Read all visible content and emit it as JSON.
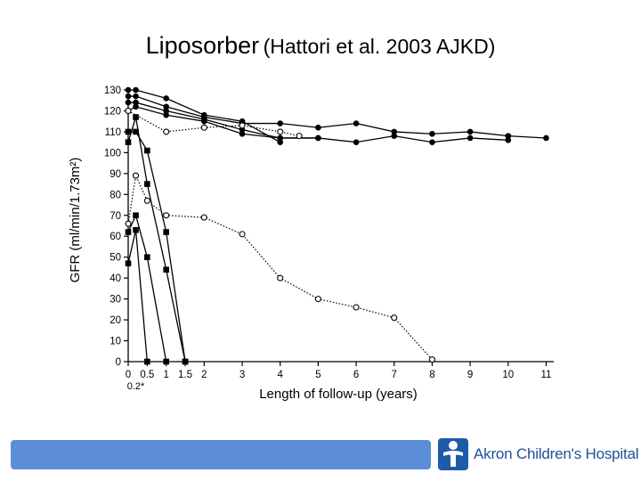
{
  "slide": {
    "title_main": "Liposorber",
    "title_cite": "(Hattori et al. 2003 AJKD)"
  },
  "footer": {
    "logo_text": "Akron Children's Hospital"
  },
  "chart_data": {
    "type": "line",
    "ylabel": "GFR (ml/min/1.73m²)",
    "xlabel": "Length of follow-up (years)",
    "xlim": [
      0,
      11.2
    ],
    "ylim": [
      0,
      130
    ],
    "x_ticks": [
      {
        "x": 0,
        "label": "0"
      },
      {
        "x": 0.5,
        "label": "0.5"
      },
      {
        "x": 1,
        "label": "1"
      },
      {
        "x": 1.5,
        "label": "1.5"
      },
      {
        "x": 2,
        "label": "2"
      },
      {
        "x": 3,
        "label": "3"
      },
      {
        "x": 4,
        "label": "4"
      },
      {
        "x": 5,
        "label": "5"
      },
      {
        "x": 6,
        "label": "6"
      },
      {
        "x": 7,
        "label": "7"
      },
      {
        "x": 8,
        "label": "8"
      },
      {
        "x": 9,
        "label": "9"
      },
      {
        "x": 10,
        "label": "10"
      },
      {
        "x": 11,
        "label": "11"
      }
    ],
    "x_ticks_extra": [
      {
        "x": 0.2,
        "label": "0.2*"
      }
    ],
    "y_ticks": [
      0,
      10,
      20,
      30,
      40,
      50,
      60,
      70,
      80,
      90,
      100,
      110,
      120,
      130
    ],
    "series": [
      {
        "marker": "filled-circle",
        "style": "solid",
        "points": [
          [
            0,
            130
          ],
          [
            0.2,
            130
          ],
          [
            1,
            126
          ],
          [
            2,
            118
          ],
          [
            3,
            115
          ],
          [
            4,
            105
          ]
        ]
      },
      {
        "marker": "filled-circle",
        "style": "solid",
        "points": [
          [
            0,
            127
          ],
          [
            0.2,
            127
          ],
          [
            1,
            122
          ],
          [
            2,
            117
          ],
          [
            3,
            114
          ],
          [
            4,
            114
          ],
          [
            5,
            112
          ],
          [
            6,
            114
          ],
          [
            7,
            110
          ],
          [
            8,
            109
          ],
          [
            9,
            110
          ],
          [
            10,
            108
          ]
        ]
      },
      {
        "marker": "filled-circle",
        "style": "solid",
        "points": [
          [
            0,
            124
          ],
          [
            0.2,
            124
          ],
          [
            1,
            120
          ],
          [
            2,
            116
          ],
          [
            3,
            111
          ],
          [
            4,
            107
          ],
          [
            5,
            107
          ],
          [
            6,
            105
          ],
          [
            7,
            108
          ],
          [
            8,
            105
          ],
          [
            9,
            107
          ],
          [
            10,
            106
          ]
        ]
      },
      {
        "marker": "filled-circle",
        "style": "solid",
        "points": [
          [
            0,
            120
          ],
          [
            0.2,
            122
          ],
          [
            1,
            118
          ],
          [
            2,
            115
          ],
          [
            3,
            109
          ],
          [
            4,
            107
          ],
          [
            5,
            107
          ]
        ]
      },
      {
        "marker": "filled-circle",
        "style": "solid",
        "points": [
          [
            10,
            108
          ],
          [
            11,
            107
          ]
        ]
      },
      {
        "marker": "open-circle",
        "style": "dotted",
        "points": [
          [
            0,
            120
          ],
          [
            1,
            110
          ],
          [
            2,
            112
          ],
          [
            3,
            113
          ],
          [
            4,
            110
          ],
          [
            4.5,
            108
          ]
        ]
      },
      {
        "marker": "open-circle",
        "style": "dotted",
        "points": [
          [
            0,
            66
          ],
          [
            0.2,
            89
          ],
          [
            0.5,
            77
          ],
          [
            1,
            70
          ],
          [
            2,
            69
          ],
          [
            3,
            61
          ],
          [
            4,
            40
          ],
          [
            5,
            30
          ],
          [
            6,
            26
          ],
          [
            7,
            21
          ],
          [
            8,
            1
          ]
        ]
      },
      {
        "marker": "filled-square",
        "style": "solid",
        "points": [
          [
            0,
            110
          ],
          [
            0.2,
            110
          ],
          [
            0.5,
            101
          ],
          [
            1,
            62
          ],
          [
            1.5,
            0
          ]
        ]
      },
      {
        "marker": "filled-square",
        "style": "solid",
        "points": [
          [
            0,
            105
          ],
          [
            0.2,
            117
          ],
          [
            0.5,
            85
          ],
          [
            1,
            44
          ],
          [
            1.5,
            0
          ]
        ]
      },
      {
        "marker": "filled-square",
        "style": "solid",
        "points": [
          [
            0,
            62
          ],
          [
            0.2,
            70
          ],
          [
            0.5,
            50
          ],
          [
            1,
            0
          ]
        ]
      },
      {
        "marker": "filled-square",
        "style": "solid",
        "points": [
          [
            0,
            47
          ],
          [
            0.2,
            63
          ],
          [
            0.5,
            0
          ]
        ]
      }
    ]
  }
}
